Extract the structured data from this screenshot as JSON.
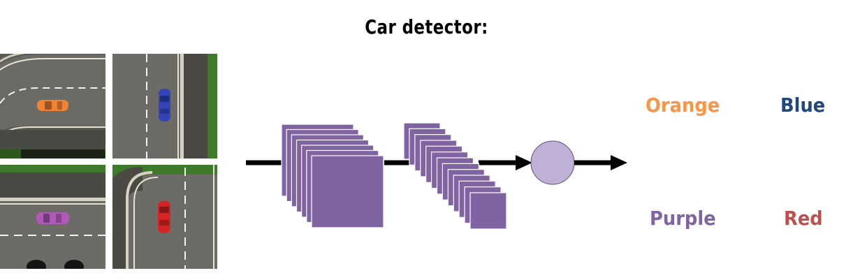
{
  "title": "Car detector:",
  "tiles": [
    {
      "name": "curve-road-orange-car",
      "car_color": "#f08232"
    },
    {
      "name": "straight-road-blue-car",
      "car_color": "#3344bb"
    },
    {
      "name": "straight-road-purple-car",
      "car_color": "#b05ab8"
    },
    {
      "name": "curve-road-red-car",
      "car_color": "#d42424"
    }
  ],
  "network": {
    "layer1_maps": 7,
    "layer2_maps": 13,
    "fill": "#8064a2",
    "node_fill": "#c0b0d6"
  },
  "classes": [
    {
      "label": "Orange",
      "color": "#f79646"
    },
    {
      "label": "Blue",
      "color": "#1f497d"
    },
    {
      "label": "Purple",
      "color": "#8064a2"
    },
    {
      "label": "Red",
      "color": "#c0504d"
    }
  ]
}
